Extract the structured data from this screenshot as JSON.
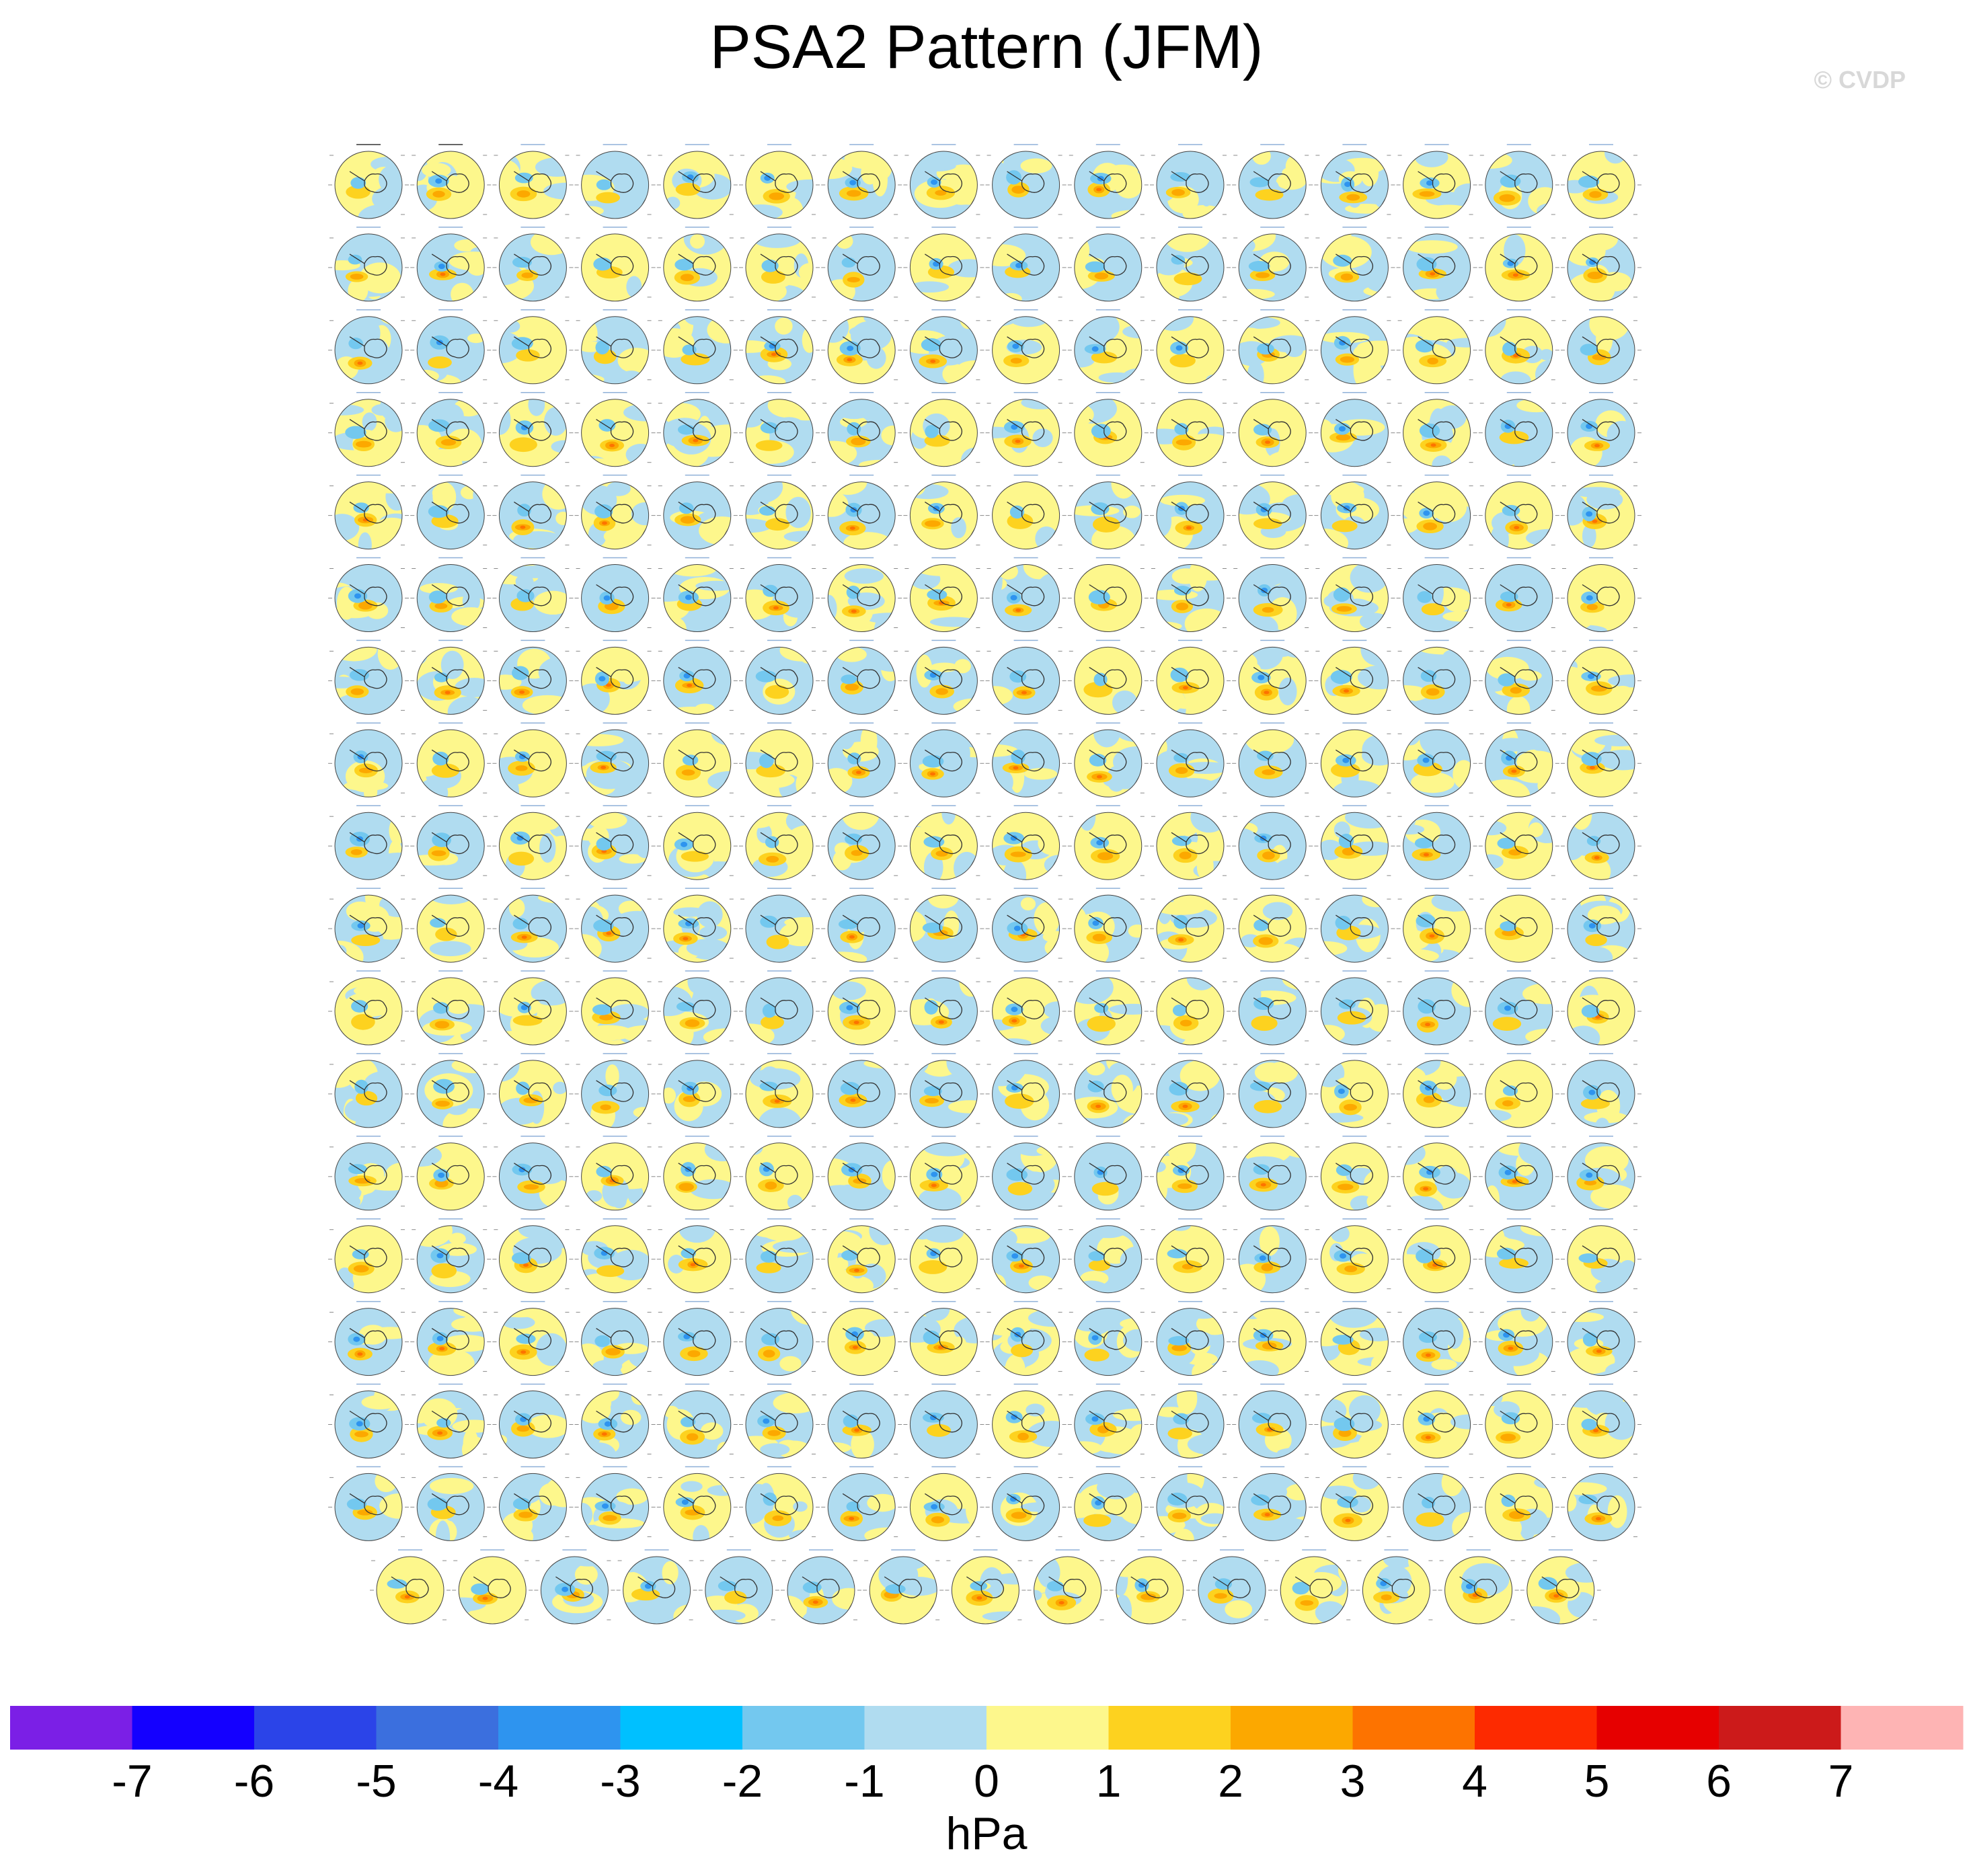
{
  "title": "PSA2 Pattern (JFM)",
  "watermark": "© CVDP",
  "chart_data": {
    "type": "heatmap",
    "title": "PSA2 Pattern (JFM)",
    "panel_layout": {
      "rows_full": 17,
      "cols_full": 16,
      "last_row_panels": 15,
      "total_panels": 287
    },
    "colorbar": {
      "label": "hPa",
      "ticks": [
        -7,
        -6,
        -5,
        -4,
        -3,
        -2,
        -1,
        0,
        1,
        2,
        3,
        4,
        5,
        6,
        7
      ],
      "colors": [
        "#7b1fe6",
        "#1400ff",
        "#2b44e8",
        "#3b6fde",
        "#2e94ef",
        "#00c0ff",
        "#73c8ef",
        "#b0dcf0",
        "#fdf78c",
        "#fdd21f",
        "#fca800",
        "#fd7300",
        "#fd2a00",
        "#e60000",
        "#cc1a1a",
        "#feb4b4"
      ]
    }
  }
}
